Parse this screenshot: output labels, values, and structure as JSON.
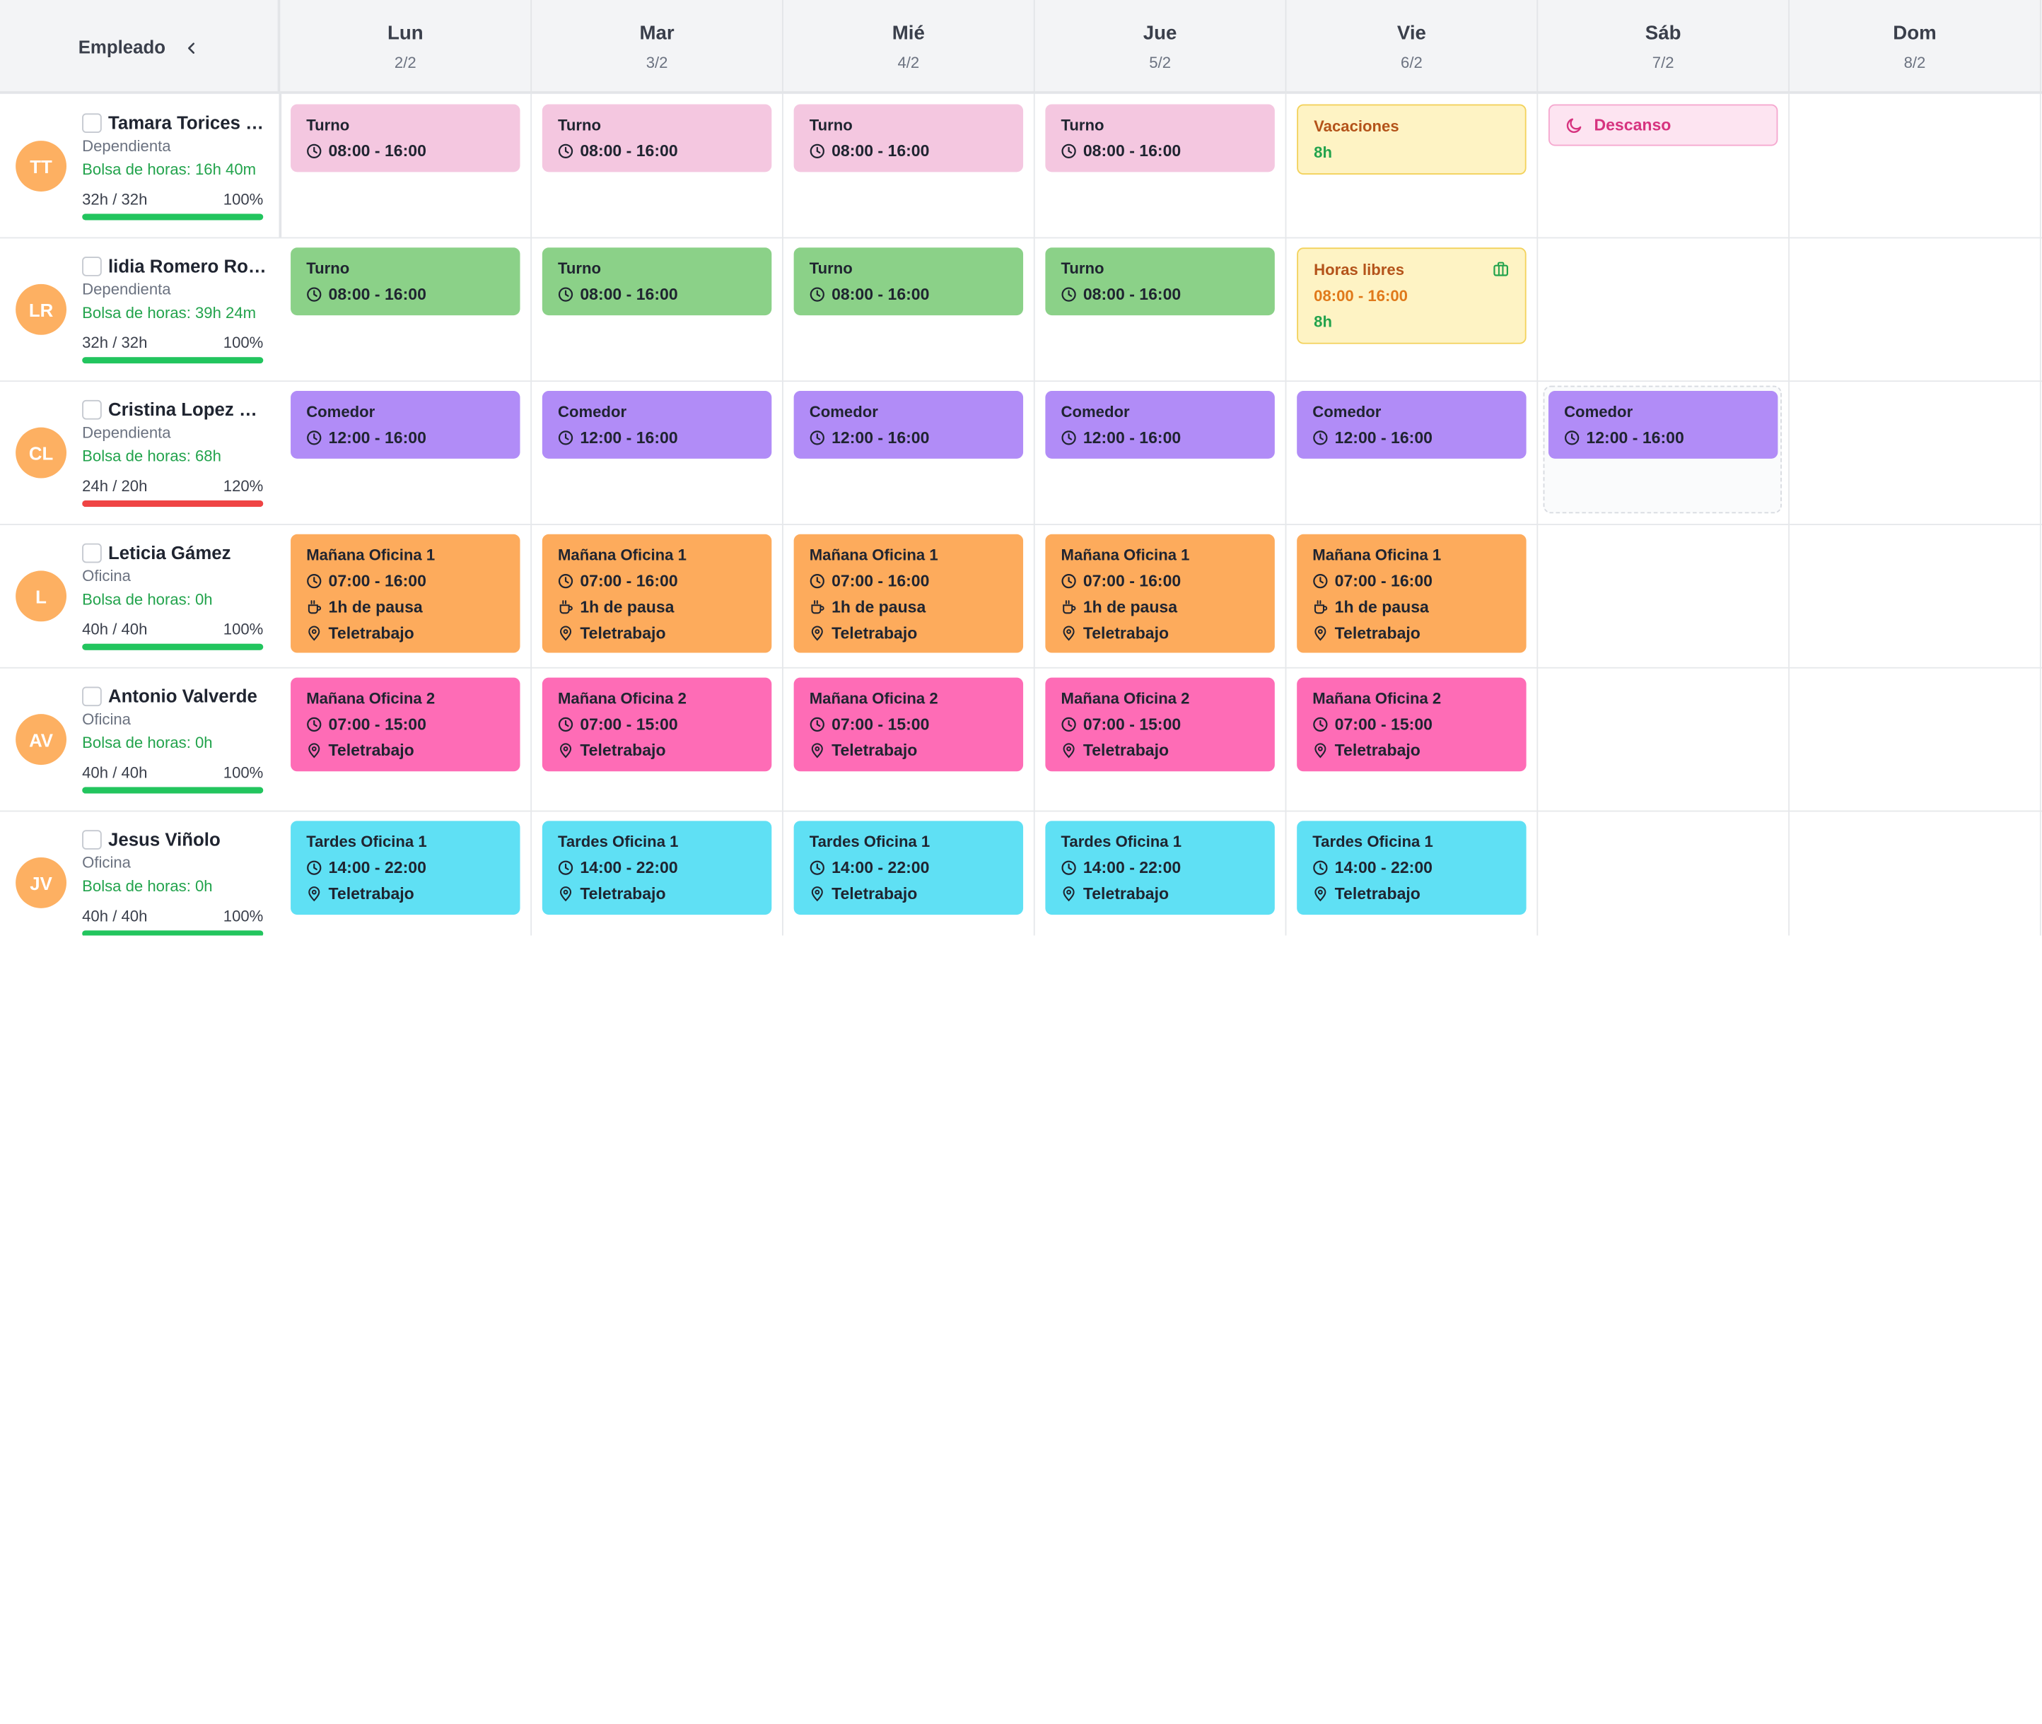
{
  "header": {
    "employee_label": "Empleado",
    "days": [
      {
        "name": "Lun",
        "date": "2/2"
      },
      {
        "name": "Mar",
        "date": "3/2"
      },
      {
        "name": "Mié",
        "date": "4/2"
      },
      {
        "name": "Jue",
        "date": "5/2"
      },
      {
        "name": "Vie",
        "date": "6/2"
      },
      {
        "name": "Sáb",
        "date": "7/2"
      },
      {
        "name": "Dom",
        "date": "8/2"
      }
    ]
  },
  "colors": {
    "avatar": "#fdb062",
    "progress_ok": "#22c55e",
    "progress_over": "#ef4444",
    "bolsa_text": "#22a34c",
    "turno_pink": "#f4c7e0",
    "turno_green": "#8bd188",
    "comedor": "#b18cf7",
    "oficina1": "#fdab5c",
    "oficina2": "#fe6cb6",
    "tardes": "#5fe0f4",
    "vacaciones": "#fef3c4"
  },
  "employees": [
    {
      "initials": "TT",
      "name": "Tamara Torices Iz...",
      "role": "Dependienta",
      "bolsa": "Bolsa de horas: 16h 40m",
      "hours": "32h / 32h",
      "percent": "100%",
      "progress": 1.0,
      "over": false,
      "shifts": [
        {
          "day": 0,
          "kind": "turno_pink",
          "title": "Turno",
          "time": "08:00 - 16:00"
        },
        {
          "day": 1,
          "kind": "turno_pink",
          "title": "Turno",
          "time": "08:00 - 16:00"
        },
        {
          "day": 2,
          "kind": "turno_pink",
          "title": "Turno",
          "time": "08:00 - 16:00"
        },
        {
          "day": 3,
          "kind": "turno_pink",
          "title": "Turno",
          "time": "08:00 - 16:00"
        },
        {
          "day": 4,
          "kind": "vacaciones",
          "title": "Vacaciones",
          "hours": "8h"
        },
        {
          "day": 5,
          "kind": "descanso",
          "title": "Descanso"
        }
      ]
    },
    {
      "initials": "LR",
      "name": "lidia Romero Rom...",
      "role": "Dependienta",
      "bolsa": "Bolsa de horas: 39h 24m",
      "hours": "32h / 32h",
      "percent": "100%",
      "progress": 1.0,
      "over": false,
      "shifts": [
        {
          "day": 0,
          "kind": "turno_green",
          "title": "Turno",
          "time": "08:00 - 16:00"
        },
        {
          "day": 1,
          "kind": "turno_green",
          "title": "Turno",
          "time": "08:00 - 16:00"
        },
        {
          "day": 2,
          "kind": "turno_green",
          "title": "Turno",
          "time": "08:00 - 16:00"
        },
        {
          "day": 3,
          "kind": "turno_green",
          "title": "Turno",
          "time": "08:00 - 16:00"
        },
        {
          "day": 4,
          "kind": "horas_libres",
          "title": "Horas libres",
          "time": "08:00 - 16:00",
          "hours": "8h"
        }
      ]
    },
    {
      "initials": "CL",
      "name": "Cristina Lopez Lo...",
      "role": "Dependienta",
      "bolsa": "Bolsa de horas: 68h",
      "hours": "24h / 20h",
      "percent": "120%",
      "progress": 1.0,
      "over": true,
      "shifts": [
        {
          "day": 0,
          "kind": "comedor",
          "title": "Comedor",
          "time": "12:00 - 16:00"
        },
        {
          "day": 1,
          "kind": "comedor",
          "title": "Comedor",
          "time": "12:00 - 16:00"
        },
        {
          "day": 2,
          "kind": "comedor",
          "title": "Comedor",
          "time": "12:00 - 16:00"
        },
        {
          "day": 3,
          "kind": "comedor",
          "title": "Comedor",
          "time": "12:00 - 16:00"
        },
        {
          "day": 4,
          "kind": "comedor",
          "title": "Comedor",
          "time": "12:00 - 16:00"
        },
        {
          "day": 5,
          "kind": "comedor",
          "title": "Comedor",
          "time": "12:00 - 16:00",
          "dragging": true
        }
      ]
    },
    {
      "initials": "L",
      "name": "Leticia Gámez",
      "role": "Oficina",
      "bolsa": "Bolsa de horas: 0h",
      "hours": "40h / 40h",
      "percent": "100%",
      "progress": 1.0,
      "over": false,
      "shifts": [
        {
          "day": 0,
          "kind": "oficina1",
          "title": "Mañana Oficina 1",
          "time": "07:00 - 16:00",
          "pause": "1h de pausa",
          "location": "Teletrabajo"
        },
        {
          "day": 1,
          "kind": "oficina1",
          "title": "Mañana Oficina 1",
          "time": "07:00 - 16:00",
          "pause": "1h de pausa",
          "location": "Teletrabajo"
        },
        {
          "day": 2,
          "kind": "oficina1",
          "title": "Mañana Oficina 1",
          "time": "07:00 - 16:00",
          "pause": "1h de pausa",
          "location": "Teletrabajo"
        },
        {
          "day": 3,
          "kind": "oficina1",
          "title": "Mañana Oficina 1",
          "time": "07:00 - 16:00",
          "pause": "1h de pausa",
          "location": "Teletrabajo"
        },
        {
          "day": 4,
          "kind": "oficina1",
          "title": "Mañana Oficina 1",
          "time": "07:00 - 16:00",
          "pause": "1h de pausa",
          "location": "Teletrabajo"
        }
      ]
    },
    {
      "initials": "AV",
      "name": "Antonio Valverde",
      "role": "Oficina",
      "bolsa": "Bolsa de horas: 0h",
      "hours": "40h / 40h",
      "percent": "100%",
      "progress": 1.0,
      "over": false,
      "shifts": [
        {
          "day": 0,
          "kind": "oficina2",
          "title": "Mañana Oficina 2",
          "time": "07:00 - 15:00",
          "location": "Teletrabajo"
        },
        {
          "day": 1,
          "kind": "oficina2",
          "title": "Mañana Oficina 2",
          "time": "07:00 - 15:00",
          "location": "Teletrabajo"
        },
        {
          "day": 2,
          "kind": "oficina2",
          "title": "Mañana Oficina 2",
          "time": "07:00 - 15:00",
          "location": "Teletrabajo"
        },
        {
          "day": 3,
          "kind": "oficina2",
          "title": "Mañana Oficina 2",
          "time": "07:00 - 15:00",
          "location": "Teletrabajo"
        },
        {
          "day": 4,
          "kind": "oficina2",
          "title": "Mañana Oficina 2",
          "time": "07:00 - 15:00",
          "location": "Teletrabajo"
        }
      ]
    },
    {
      "initials": "JV",
      "name": "Jesus Viñolo",
      "role": "Oficina",
      "bolsa": "Bolsa de horas: 0h",
      "hours": "40h / 40h",
      "percent": "100%",
      "progress": 1.0,
      "over": false,
      "shifts": [
        {
          "day": 0,
          "kind": "tardes",
          "title": "Tardes Oficina 1",
          "time": "14:00 - 22:00",
          "location": "Teletrabajo"
        },
        {
          "day": 1,
          "kind": "tardes",
          "title": "Tardes Oficina 1",
          "time": "14:00 - 22:00",
          "location": "Teletrabajo"
        },
        {
          "day": 2,
          "kind": "tardes",
          "title": "Tardes Oficina 1",
          "time": "14:00 - 22:00",
          "location": "Teletrabajo"
        },
        {
          "day": 3,
          "kind": "tardes",
          "title": "Tardes Oficina 1",
          "time": "14:00 - 22:00",
          "location": "Teletrabajo"
        },
        {
          "day": 4,
          "kind": "tardes",
          "title": "Tardes Oficina 1",
          "time": "14:00 - 22:00",
          "location": "Teletrabajo"
        }
      ]
    }
  ]
}
